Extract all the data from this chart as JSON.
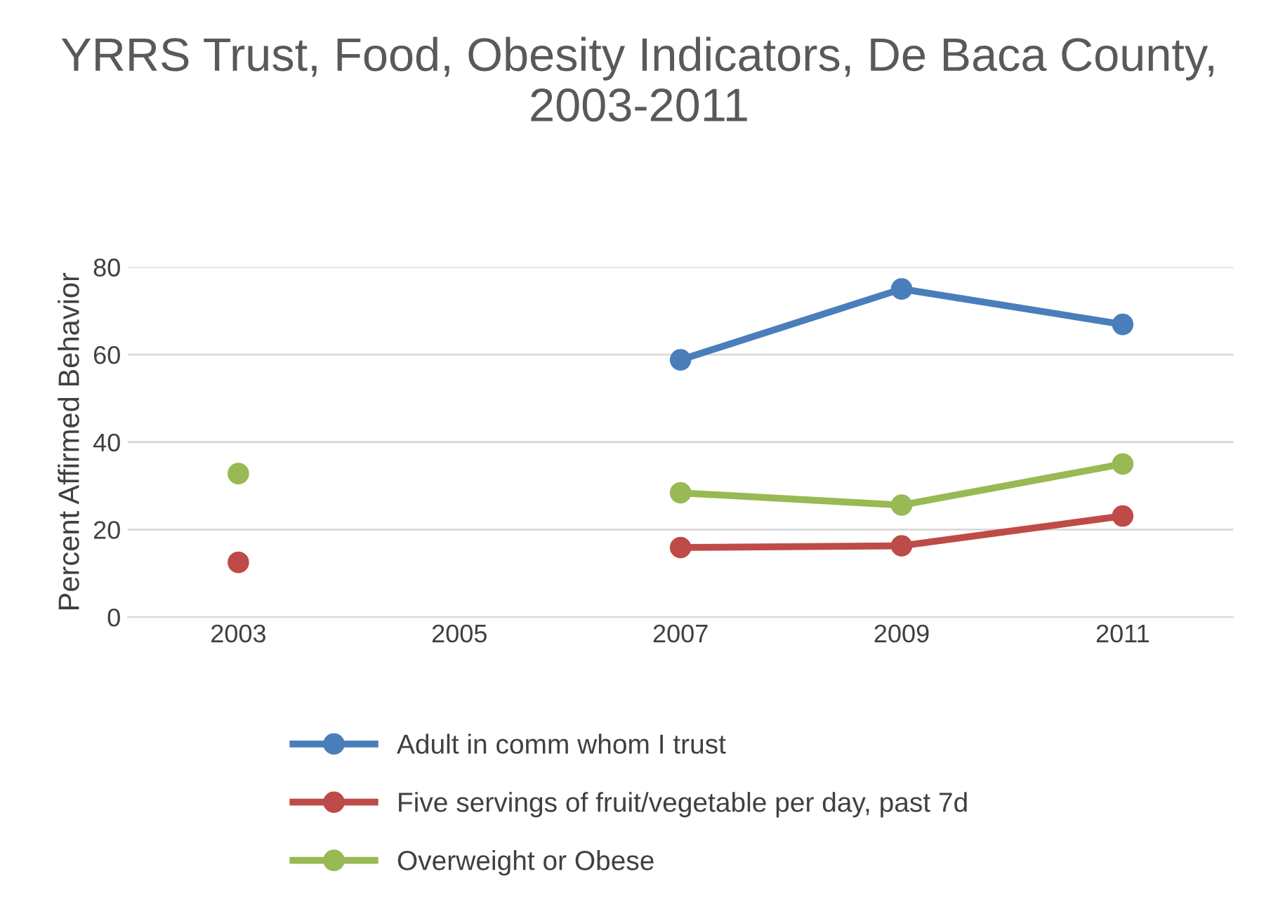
{
  "chart_data": {
    "type": "line",
    "title": "YRRS Trust, Food, Obesity Indicators, De Baca County, 2003-2011",
    "ylabel": "Percent Affirmed Behavior",
    "categories": [
      "2003",
      "2005",
      "2007",
      "2009",
      "2011"
    ],
    "series": [
      {
        "name": "Adult in comm whom I trust",
        "color": "#4a7ebb",
        "values": [
          null,
          null,
          58.8,
          75.0,
          66.9
        ]
      },
      {
        "name": "Five servings of fruit/vegetable per day, past 7d",
        "color": "#be4b48",
        "values": [
          12.5,
          null,
          15.9,
          16.3,
          23.1
        ]
      },
      {
        "name": "Overweight or Obese",
        "color": "#98b954",
        "values": [
          32.8,
          null,
          28.4,
          25.6,
          35.0
        ]
      }
    ],
    "ylim": [
      0,
      80
    ],
    "yticks": [
      0,
      20,
      40,
      60,
      80
    ],
    "grid": "y",
    "legend": "bottom",
    "marker": "circle",
    "line_style": "solid"
  }
}
